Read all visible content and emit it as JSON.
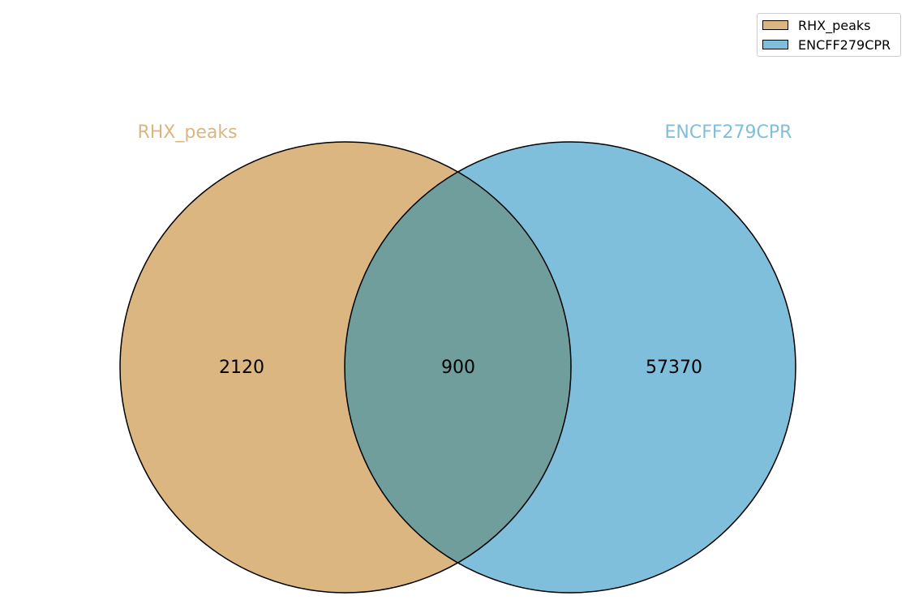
{
  "chart_data": {
    "type": "venn",
    "sets": [
      {
        "name": "RHX_peaks",
        "color": "#dbb680"
      },
      {
        "name": "ENCFF279CPR",
        "color": "#7fbfdb"
      }
    ],
    "overlap_color": "#6f9e9d",
    "regions": {
      "RHX_peaks_only": 2120,
      "intersection": 900,
      "ENCFF279CPR_only": 57370
    },
    "legend_position": "top-right"
  }
}
